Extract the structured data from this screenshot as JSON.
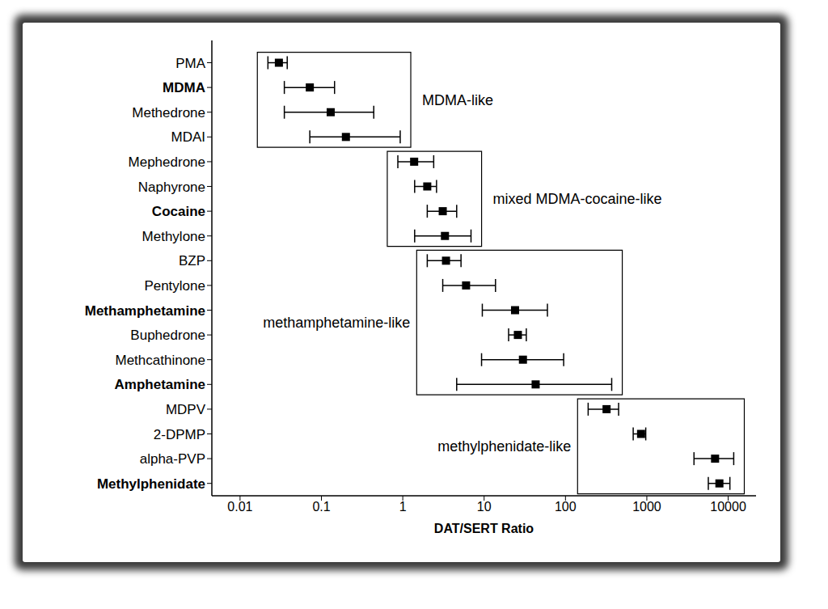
{
  "chart_data": {
    "type": "scatter",
    "orientation": "horizontal",
    "log": "x",
    "grid": false,
    "xlabel": "DAT/SERT Ratio",
    "color": "#000000",
    "marker": "square",
    "xlim": [
      0.0045,
      22000
    ],
    "xticks": [
      0.01,
      0.1,
      1,
      10,
      100,
      1000,
      10000
    ],
    "categories": [
      "PMA",
      "MDMA",
      "Methedrone",
      "MDAI",
      "Mephedrone",
      "Naphyrone",
      "Cocaine",
      "Methylone",
      "BZP",
      "Pentylone",
      "Methamphetamine",
      "Buphedrone",
      "Methcathinone",
      "Amphetamine",
      "MDPV",
      "2-DPMP",
      "alpha-PVP",
      "Methylphenidate"
    ],
    "values": [
      0.03,
      0.072,
      0.13,
      0.2,
      1.38,
      2.0,
      3.1,
      3.3,
      3.4,
      6.0,
      24,
      26,
      30,
      43,
      320,
      850,
      6900,
      7800
    ],
    "error_low": [
      0.022,
      0.035,
      0.035,
      0.072,
      0.87,
      1.4,
      2.0,
      1.4,
      2.0,
      3.1,
      9.5,
      20,
      9.3,
      4.6,
      190,
      680,
      3800,
      5700
    ],
    "error_high": [
      0.038,
      0.145,
      0.44,
      0.93,
      2.4,
      2.6,
      4.6,
      6.9,
      5.2,
      13.8,
      60,
      33,
      95,
      370,
      450,
      970,
      11700,
      10500
    ],
    "boxes": [
      {
        "label": "MDMA-like",
        "from": "PMA",
        "to": "MDAI"
      },
      {
        "label": "mixed MDMA-cocaine-like",
        "from": "Mephedrone",
        "to": "Methylone"
      },
      {
        "label": "methamphetamine-like",
        "from": "BZP",
        "to": "Amphetamine"
      },
      {
        "label": "methylphenidate-like",
        "from": "MDPV",
        "to": "Methylphenidate"
      }
    ]
  }
}
